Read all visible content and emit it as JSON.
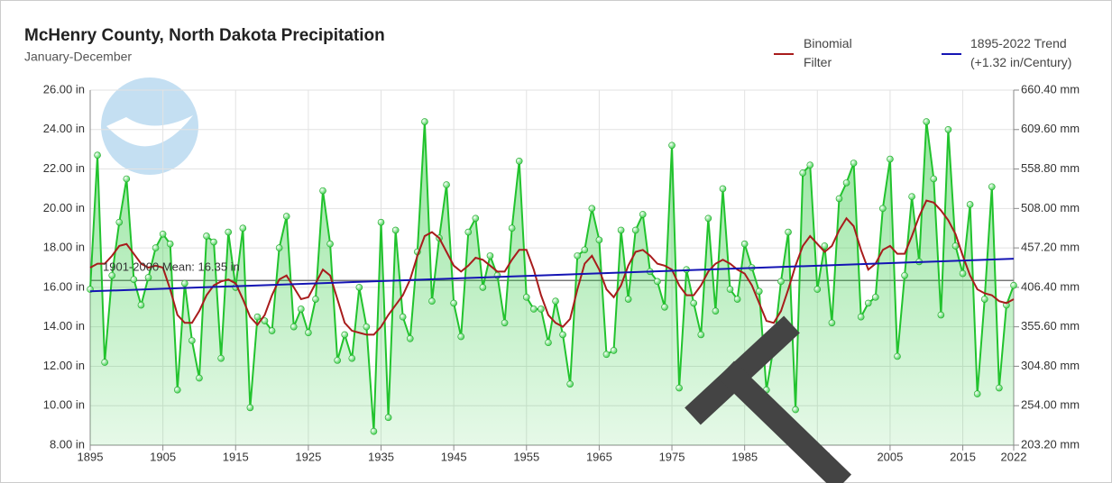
{
  "chart_data": {
    "type": "line",
    "title": "McHenry County, North Dakota Precipitation",
    "subtitle": "January-December",
    "x": [
      1895,
      1896,
      1897,
      1898,
      1899,
      1900,
      1901,
      1902,
      1903,
      1904,
      1905,
      1906,
      1907,
      1908,
      1909,
      1910,
      1911,
      1912,
      1913,
      1914,
      1915,
      1916,
      1917,
      1918,
      1919,
      1920,
      1921,
      1922,
      1923,
      1924,
      1925,
      1926,
      1927,
      1928,
      1929,
      1930,
      1931,
      1932,
      1933,
      1934,
      1935,
      1936,
      1937,
      1938,
      1939,
      1940,
      1941,
      1942,
      1943,
      1944,
      1945,
      1946,
      1947,
      1948,
      1949,
      1950,
      1951,
      1952,
      1953,
      1954,
      1955,
      1956,
      1957,
      1958,
      1959,
      1960,
      1961,
      1962,
      1963,
      1964,
      1965,
      1966,
      1967,
      1968,
      1969,
      1970,
      1971,
      1972,
      1973,
      1974,
      1975,
      1976,
      1977,
      1978,
      1979,
      1980,
      1981,
      1982,
      1983,
      1984,
      1985,
      1986,
      1987,
      1988,
      1989,
      1990,
      1991,
      1992,
      1993,
      1994,
      1995,
      1996,
      1997,
      1998,
      1999,
      2000,
      2001,
      2002,
      2003,
      2004,
      2005,
      2006,
      2007,
      2008,
      2009,
      2010,
      2011,
      2012,
      2013,
      2014,
      2015,
      2016,
      2017,
      2018,
      2019,
      2020,
      2021,
      2022
    ],
    "series": [
      {
        "color": "#22c32e",
        "values": [
          15.9,
          22.7,
          12.2,
          16.6,
          19.3,
          21.5,
          16.4,
          15.1,
          16.5,
          18.0,
          18.7,
          18.2,
          10.8,
          16.2,
          13.3,
          11.4,
          18.6,
          18.3,
          12.4,
          18.8,
          16.0,
          19.0,
          9.9,
          14.5,
          14.3,
          13.8,
          18.0,
          19.6,
          14.0,
          14.9,
          13.7,
          15.4,
          20.9,
          18.2,
          12.3,
          13.6,
          12.4,
          16.0,
          14.0,
          8.7,
          19.3,
          9.4,
          18.9,
          14.5,
          13.4,
          17.8,
          24.4,
          15.3,
          18.5,
          21.2,
          15.2,
          13.5,
          18.8,
          19.5,
          16.0,
          17.6,
          16.6,
          14.2,
          19.0,
          22.4,
          15.5,
          14.9,
          14.9,
          13.2,
          15.3,
          13.6,
          11.1,
          17.6,
          17.9,
          20.0,
          18.4,
          12.6,
          12.8,
          18.9,
          15.4,
          18.9,
          19.7,
          16.8,
          16.3,
          15.0,
          23.2,
          10.9,
          16.9,
          15.2,
          13.6,
          19.5,
          14.8,
          21.0,
          15.9,
          15.4,
          18.2,
          17.0,
          15.8,
          10.8,
          13.0,
          16.3,
          18.8,
          9.8,
          21.8,
          22.2,
          15.9,
          18.1,
          14.2,
          20.5,
          21.3,
          22.3,
          14.5,
          15.2,
          15.5,
          20.0,
          22.5,
          12.5,
          16.6,
          20.6,
          17.3,
          24.4,
          21.5,
          14.6,
          24.0,
          18.1,
          16.7,
          20.2,
          10.6,
          15.4,
          21.1,
          10.9,
          15.1,
          16.1
        ]
      },
      {
        "name": "Binomial Filter",
        "color": "#a81c1c",
        "values": [
          17.0,
          17.2,
          17.2,
          17.6,
          18.1,
          18.2,
          17.7,
          17.2,
          17.0,
          17.1,
          17.0,
          15.9,
          14.6,
          14.2,
          14.2,
          14.8,
          15.6,
          16.1,
          16.3,
          16.4,
          16.2,
          15.4,
          14.5,
          14.1,
          14.6,
          15.6,
          16.4,
          16.6,
          16.0,
          15.4,
          15.5,
          16.2,
          16.9,
          16.6,
          15.4,
          14.2,
          13.8,
          13.7,
          13.6,
          13.6,
          14.0,
          14.6,
          15.1,
          15.6,
          16.4,
          17.6,
          18.6,
          18.8,
          18.5,
          17.8,
          17.1,
          16.8,
          17.1,
          17.5,
          17.4,
          17.1,
          16.8,
          16.8,
          17.4,
          17.9,
          17.9,
          16.9,
          15.6,
          14.6,
          14.2,
          14.0,
          14.4,
          15.9,
          17.2,
          17.6,
          16.9,
          15.9,
          15.5,
          16.1,
          17.1,
          17.8,
          17.9,
          17.6,
          17.2,
          17.1,
          16.9,
          16.1,
          15.6,
          15.6,
          16.1,
          16.8,
          17.2,
          17.4,
          17.2,
          16.9,
          16.7,
          16.1,
          15.2,
          14.3,
          14.2,
          14.8,
          15.9,
          17.1,
          18.1,
          18.6,
          18.2,
          17.8,
          18.1,
          18.9,
          19.5,
          19.1,
          17.9,
          16.9,
          17.2,
          17.9,
          18.1,
          17.7,
          17.7,
          18.6,
          19.6,
          20.4,
          20.3,
          19.9,
          19.4,
          18.7,
          17.6,
          16.6,
          15.9,
          15.7,
          15.6,
          15.3,
          15.2,
          15.4
        ]
      },
      {
        "name": "1895-2022 Trend (+1.32 in/Century)",
        "color": "#1414b4",
        "x": [
          1895,
          2022
        ],
        "values": [
          15.8,
          17.45
        ]
      }
    ],
    "mean": {
      "value": 16.35,
      "label": "1901-2000 Mean: 16.35 in"
    },
    "xlim": [
      1895,
      2022
    ],
    "xticks": [
      1895,
      1905,
      1915,
      1925,
      1935,
      1945,
      1955,
      1965,
      1975,
      1985,
      1995,
      2005,
      2015,
      2022
    ],
    "ylim": [
      8,
      26
    ],
    "yticks": [
      {
        "value": 8,
        "label": "8.00 in"
      },
      {
        "value": 10,
        "label": "10.00 in"
      },
      {
        "value": 12,
        "label": "12.00 in"
      },
      {
        "value": 14,
        "label": "14.00 in"
      },
      {
        "value": 16,
        "label": "16.00 in"
      },
      {
        "value": 18,
        "label": "18.00 in"
      },
      {
        "value": 20,
        "label": "20.00 in"
      },
      {
        "value": 22,
        "label": "22.00 in"
      },
      {
        "value": 24,
        "label": "24.00 in"
      },
      {
        "value": 26,
        "label": "26.00 in"
      }
    ],
    "y2lim": [
      203.2,
      660.4
    ],
    "y2ticks": [
      {
        "value": 203.2,
        "label": "203.20 mm"
      },
      {
        "value": 254,
        "label": "254.00 mm"
      },
      {
        "value": 304.8,
        "label": "304.80 mm"
      },
      {
        "value": 355.6,
        "label": "355.60 mm"
      },
      {
        "value": 406.4,
        "label": "406.40 mm"
      },
      {
        "value": 457.2,
        "label": "457.20 mm"
      },
      {
        "value": 508,
        "label": "508.00 mm"
      },
      {
        "value": 558.8,
        "label": "558.80 mm"
      },
      {
        "value": 609.6,
        "label": "609.60 mm"
      },
      {
        "value": 660.4,
        "label": "660.40 mm"
      }
    ],
    "grid": true
  }
}
